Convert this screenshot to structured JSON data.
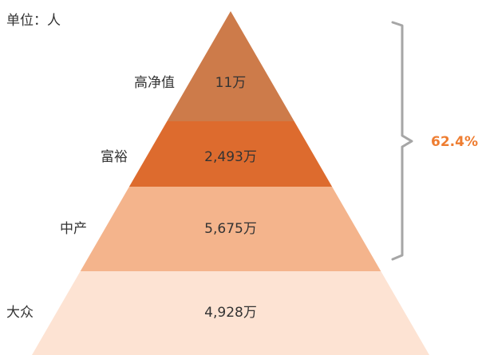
{
  "chart_data": {
    "type": "pyramid",
    "unit_label": "单位：人",
    "tiers": [
      {
        "name": "高净值",
        "value_label": "11万",
        "value": 11,
        "color": "#cd7b4a"
      },
      {
        "name": "富裕",
        "value_label": "2,493万",
        "value": 2493,
        "color": "#dd6b2e"
      },
      {
        "name": "中产",
        "value_label": "5,675万",
        "value": 5675,
        "color": "#f4b48c"
      },
      {
        "name": "大众",
        "value_label": "4,928万",
        "value": 4928,
        "color": "#fde3d3"
      }
    ],
    "bracket": {
      "label": "62.4%",
      "covers": [
        "高净值",
        "富裕",
        "中产"
      ],
      "color": "#a6a6a6",
      "label_color": "#ee7d31"
    }
  }
}
